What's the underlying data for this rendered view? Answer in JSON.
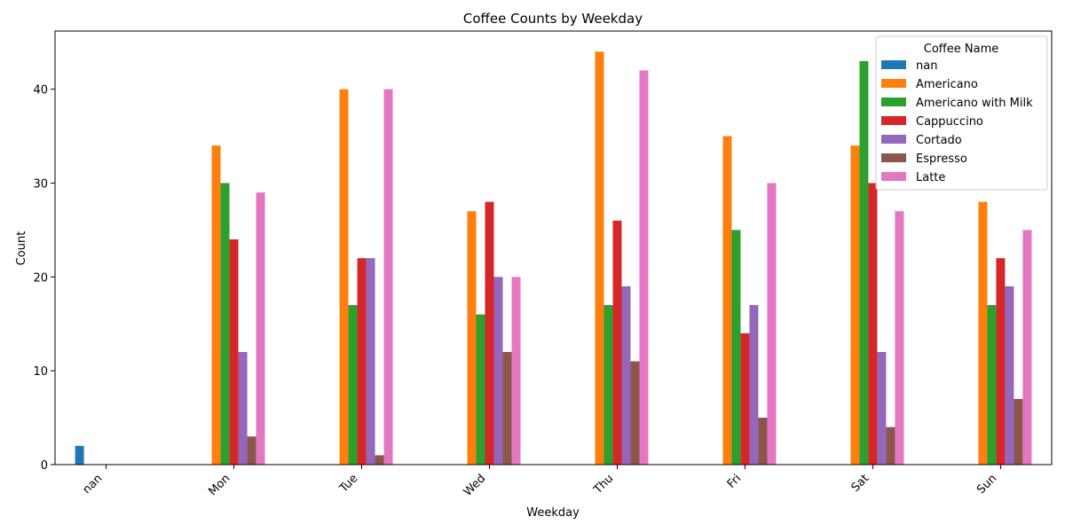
{
  "chart_data": {
    "type": "bar",
    "title": "Coffee Counts by Weekday",
    "xlabel": "Weekday",
    "ylabel": "Count",
    "categories": [
      "nan",
      "Mon",
      "Tue",
      "Wed",
      "Thu",
      "Fri",
      "Sat",
      "Sun"
    ],
    "ylim": [
      0,
      46.2
    ],
    "yticks": [
      0,
      10,
      20,
      30,
      40
    ],
    "legend": {
      "title": "Coffee Name",
      "placement": "top-right"
    },
    "grid": false,
    "series": [
      {
        "name": "nan",
        "color": "#1f77b4",
        "values": [
          2,
          0,
          0,
          0,
          0,
          0,
          0,
          0
        ]
      },
      {
        "name": "Americano",
        "color": "#ff7f0e",
        "values": [
          0,
          34,
          40,
          27,
          44,
          35,
          34,
          28
        ]
      },
      {
        "name": "Americano with Milk",
        "color": "#2ca02c",
        "values": [
          0,
          30,
          17,
          16,
          17,
          25,
          43,
          17
        ]
      },
      {
        "name": "Cappuccino",
        "color": "#d62728",
        "values": [
          0,
          24,
          22,
          28,
          26,
          14,
          30,
          22
        ]
      },
      {
        "name": "Cortado",
        "color": "#9467bd",
        "values": [
          0,
          12,
          22,
          20,
          19,
          17,
          12,
          19
        ]
      },
      {
        "name": "Espresso",
        "color": "#8c564b",
        "values": [
          0,
          3,
          1,
          12,
          11,
          5,
          4,
          7
        ]
      },
      {
        "name": "Latte",
        "color": "#e377c2",
        "values": [
          0,
          29,
          40,
          20,
          42,
          30,
          27,
          25
        ]
      }
    ]
  }
}
